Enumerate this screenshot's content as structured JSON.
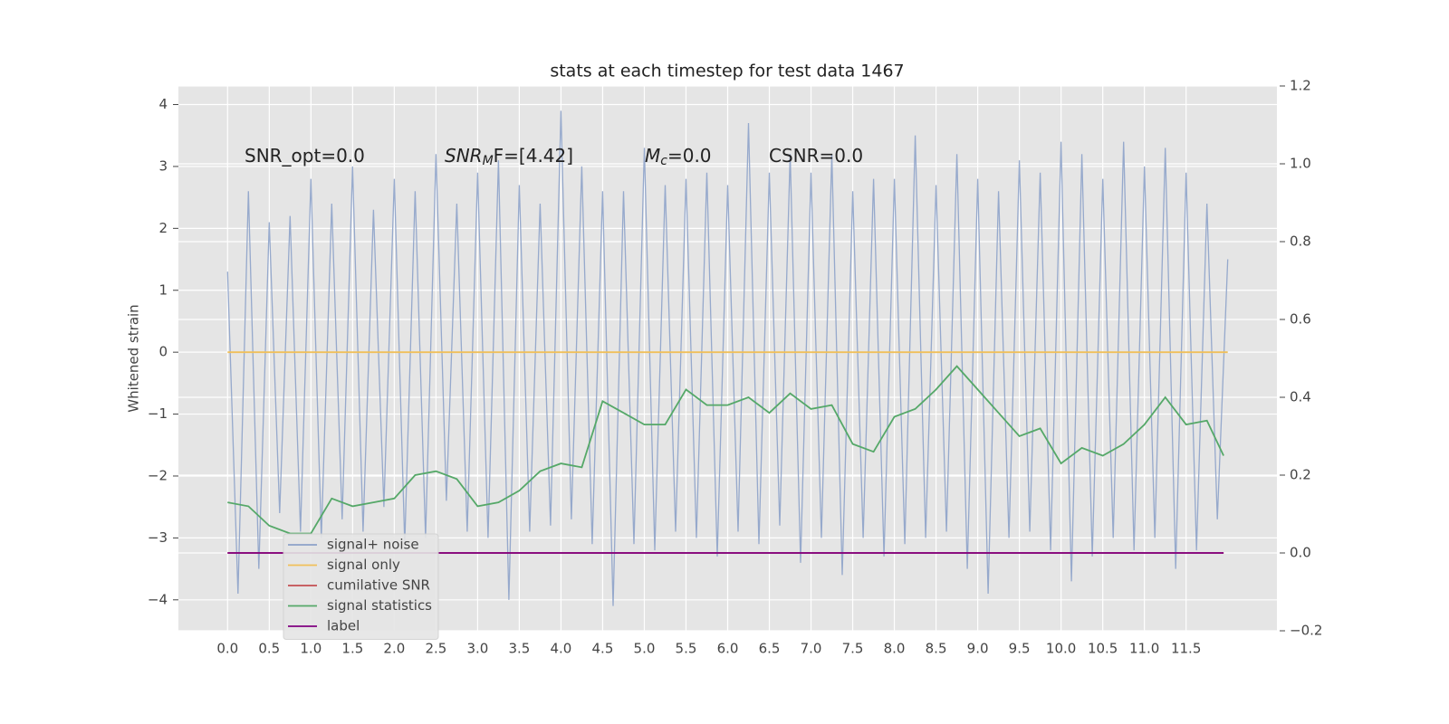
{
  "chart_data": {
    "type": "line",
    "title": "stats at each timestep for test data 1467",
    "ylabel": "Whitened strain",
    "xlim": [
      -0.59,
      12.59
    ],
    "ylim": [
      -4.5,
      4.3
    ],
    "y2lim": [
      -0.2,
      1.2
    ],
    "grid": true,
    "legend": "lower left",
    "xticks": [
      {
        "value": 0,
        "label": "0.0"
      },
      0.5,
      {
        "value": 1,
        "label": "1.0"
      },
      1.5,
      {
        "value": 2,
        "label": "2.0"
      },
      2.5,
      {
        "value": 3,
        "label": "3.0"
      },
      3.5,
      {
        "value": 4,
        "label": "4.0"
      },
      4.5,
      {
        "value": 5,
        "label": "5.0"
      },
      5.5,
      {
        "value": 6,
        "label": "6.0"
      },
      6.5,
      {
        "value": 7,
        "label": "7.0"
      },
      7.5,
      {
        "value": 8,
        "label": "8.0"
      },
      8.5,
      {
        "value": 9,
        "label": "9.0"
      },
      9.5,
      {
        "value": 10,
        "label": "10.0"
      },
      10.5,
      {
        "value": 11,
        "label": "11.0"
      },
      11.5
    ],
    "yticks": [
      {
        "value": -4,
        "label": "−4"
      },
      {
        "value": -3,
        "label": "−3"
      },
      {
        "value": -2,
        "label": "−2"
      },
      {
        "value": -1,
        "label": "−1"
      },
      0,
      1,
      2,
      3,
      4
    ],
    "y2ticks": [
      {
        "value": -0.2,
        "label": "−0.2"
      },
      {
        "value": 0,
        "label": "0.0"
      },
      0.2,
      0.4,
      0.6,
      0.8,
      {
        "value": 1,
        "label": "1.0"
      },
      1.2
    ],
    "annotations": [
      {
        "parts": [
          "SNR_opt=0.0"
        ]
      },
      {
        "parts": [
          "SNR",
          "M",
          "F=[4.42]"
        ]
      },
      {
        "parts": [
          "M",
          "c",
          "=0.0"
        ]
      },
      {
        "parts": [
          "CSNR=0.0"
        ]
      }
    ],
    "series": [
      {
        "name": "signal+ noise",
        "color": "#8da2c9",
        "axis": "y",
        "x": [
          0,
          0.125,
          0.25,
          0.375,
          0.5,
          0.625,
          0.75,
          0.875,
          1,
          1.125,
          1.25,
          1.375,
          1.5,
          1.625,
          1.75,
          1.875,
          2,
          2.125,
          2.25,
          2.375,
          2.5,
          2.625,
          2.75,
          2.875,
          3,
          3.125,
          3.25,
          3.375,
          3.5,
          3.625,
          3.75,
          3.875,
          4,
          4.125,
          4.25,
          4.375,
          4.5,
          4.625,
          4.75,
          4.875,
          5,
          5.125,
          5.25,
          5.375,
          5.5,
          5.625,
          5.75,
          5.875,
          6,
          6.125,
          6.25,
          6.375,
          6.5,
          6.625,
          6.75,
          6.875,
          7,
          7.125,
          7.25,
          7.375,
          7.5,
          7.625,
          7.75,
          7.875,
          8,
          8.125,
          8.25,
          8.375,
          8.5,
          8.625,
          8.75,
          8.875,
          9,
          9.125,
          9.25,
          9.375,
          9.5,
          9.625,
          9.75,
          9.875,
          10,
          10.125,
          10.25,
          10.375,
          10.5,
          10.625,
          10.75,
          10.875,
          11,
          11.125,
          11.25,
          11.375,
          11.5,
          11.625,
          11.75,
          11.875,
          12
        ],
        "values": [
          1.3,
          -3.9,
          2.6,
          -3.5,
          2.1,
          -2.6,
          2.2,
          -2.9,
          2.8,
          -3.0,
          2.4,
          -2.7,
          3.0,
          -2.9,
          2.3,
          -2.5,
          2.8,
          -3.1,
          2.6,
          -3.0,
          3.2,
          -2.4,
          2.4,
          -2.9,
          2.9,
          -3.0,
          3.1,
          -4.0,
          2.7,
          -2.9,
          2.4,
          -2.8,
          3.9,
          -2.7,
          3.0,
          -3.1,
          2.6,
          -4.1,
          2.6,
          -3.1,
          3.3,
          -3.2,
          2.7,
          -2.9,
          2.8,
          -3.0,
          2.9,
          -3.3,
          2.7,
          -2.9,
          3.7,
          -3.1,
          2.9,
          -2.8,
          3.2,
          -3.4,
          2.9,
          -3.0,
          3.2,
          -3.6,
          2.6,
          -3.0,
          2.8,
          -3.3,
          2.8,
          -3.1,
          3.5,
          -3.0,
          2.7,
          -2.9,
          3.2,
          -3.5,
          2.8,
          -3.9,
          2.6,
          -3.0,
          3.1,
          -2.9,
          2.9,
          -3.2,
          3.4,
          -3.7,
          3.2,
          -3.3,
          2.8,
          -3.0,
          3.4,
          -3.2,
          3.0,
          -3.0,
          3.3,
          -3.5,
          2.9,
          -3.2,
          2.4,
          -2.7,
          1.5
        ]
      },
      {
        "name": "signal only",
        "color": "#f0c05a",
        "axis": "y",
        "x": [
          0,
          12
        ],
        "values": [
          0,
          0
        ]
      },
      {
        "name": "cumilative SNR",
        "color": "#c44e52",
        "axis": "y2",
        "x": [
          0,
          11.95
        ],
        "values": [
          0,
          0
        ]
      },
      {
        "name": "signal statistics",
        "color": "#55a868",
        "axis": "y2",
        "x": [
          0,
          0.25,
          0.5,
          0.75,
          1,
          1.25,
          1.5,
          1.75,
          2,
          2.25,
          2.5,
          2.75,
          3,
          3.25,
          3.5,
          3.75,
          4,
          4.25,
          4.5,
          4.75,
          5,
          5.25,
          5.5,
          5.75,
          6,
          6.25,
          6.5,
          6.75,
          7,
          7.25,
          7.5,
          7.75,
          8,
          8.25,
          8.5,
          8.75,
          9,
          9.25,
          9.5,
          9.75,
          10,
          10.25,
          10.5,
          10.75,
          11,
          11.25,
          11.5,
          11.75,
          11.95
        ],
        "values": [
          0.13,
          0.12,
          0.07,
          0.05,
          0.05,
          0.14,
          0.12,
          0.13,
          0.14,
          0.2,
          0.21,
          0.19,
          0.12,
          0.13,
          0.16,
          0.21,
          0.23,
          0.22,
          0.39,
          0.36,
          0.33,
          0.33,
          0.42,
          0.38,
          0.38,
          0.4,
          0.36,
          0.41,
          0.37,
          0.38,
          0.28,
          0.26,
          0.35,
          0.37,
          0.42,
          0.48,
          0.42,
          0.36,
          0.3,
          0.32,
          0.23,
          0.27,
          0.25,
          0.28,
          0.33,
          0.4,
          0.33,
          0.34,
          0.25
        ]
      },
      {
        "name": "label",
        "color": "#800080",
        "axis": "y2",
        "x": [
          0,
          11.95
        ],
        "values": [
          0,
          0
        ]
      }
    ]
  }
}
